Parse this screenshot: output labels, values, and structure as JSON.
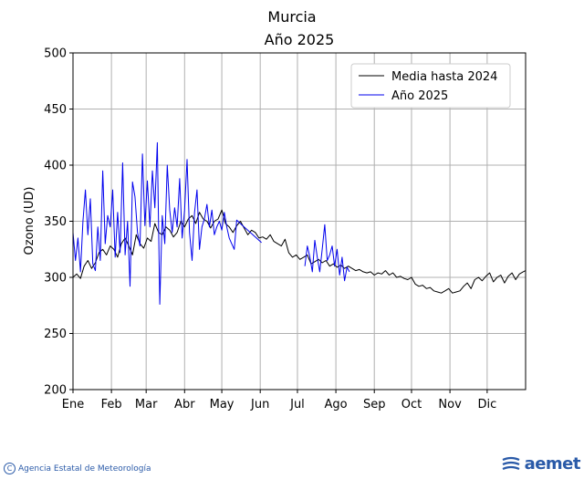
{
  "chart_data": {
    "type": "line",
    "title": "Murcia",
    "subtitle": "Año 2025",
    "ylabel": "Ozono (UD)",
    "xlabel": "",
    "ylim": [
      200,
      500
    ],
    "xlim": [
      1,
      366
    ],
    "yticks": [
      200,
      250,
      300,
      350,
      400,
      450,
      500
    ],
    "xticks": [
      {
        "day": 1,
        "label": "Ene"
      },
      {
        "day": 32,
        "label": "Feb"
      },
      {
        "day": 60,
        "label": "Mar"
      },
      {
        "day": 91,
        "label": "Abr"
      },
      {
        "day": 121,
        "label": "May"
      },
      {
        "day": 152,
        "label": "Jun"
      },
      {
        "day": 182,
        "label": "Jul"
      },
      {
        "day": 213,
        "label": "Ago"
      },
      {
        "day": 244,
        "label": "Sep"
      },
      {
        "day": 274,
        "label": "Oct"
      },
      {
        "day": 305,
        "label": "Nov"
      },
      {
        "day": 335,
        "label": "Dic"
      }
    ],
    "grid": true,
    "legend_position": "top-right",
    "series": [
      {
        "name": "Media hasta 2024",
        "color": "#000000",
        "x": [
          1,
          4,
          7,
          10,
          13,
          16,
          19,
          22,
          25,
          28,
          31,
          34,
          37,
          40,
          43,
          46,
          49,
          52,
          55,
          58,
          61,
          64,
          67,
          70,
          73,
          76,
          79,
          82,
          85,
          88,
          91,
          94,
          97,
          100,
          103,
          106,
          109,
          112,
          115,
          118,
          121,
          124,
          127,
          130,
          133,
          136,
          139,
          142,
          145,
          148,
          151,
          154,
          157,
          160,
          163,
          166,
          169,
          172,
          175,
          178,
          181,
          184,
          187,
          190,
          193,
          196,
          199,
          202,
          205,
          208,
          211,
          214,
          217,
          220,
          223,
          226,
          229,
          232,
          235,
          238,
          241,
          244,
          247,
          250,
          253,
          256,
          259,
          262,
          265,
          268,
          271,
          274,
          277,
          280,
          283,
          286,
          289,
          292,
          295,
          298,
          301,
          304,
          307,
          310,
          313,
          316,
          319,
          322,
          325,
          328,
          331,
          334,
          337,
          340,
          343,
          346,
          349,
          352,
          355,
          358,
          361,
          364,
          366
        ],
        "y": [
          300,
          303,
          299,
          310,
          315,
          308,
          313,
          322,
          325,
          320,
          328,
          325,
          318,
          330,
          335,
          328,
          320,
          338,
          330,
          326,
          335,
          332,
          348,
          340,
          338,
          345,
          342,
          336,
          340,
          350,
          345,
          352,
          355,
          348,
          358,
          352,
          350,
          344,
          350,
          352,
          360,
          348,
          345,
          340,
          346,
          350,
          344,
          338,
          342,
          340,
          335,
          336,
          334,
          338,
          332,
          330,
          328,
          334,
          322,
          318,
          320,
          316,
          318,
          320,
          312,
          314,
          316,
          313,
          315,
          310,
          312,
          309,
          311,
          308,
          310,
          308,
          306,
          307,
          305,
          304,
          305,
          302,
          304,
          303,
          306,
          302,
          304,
          300,
          301,
          299,
          298,
          300,
          294,
          292,
          293,
          290,
          291,
          288,
          287,
          286,
          288,
          290,
          286,
          287,
          288,
          292,
          295,
          290,
          298,
          300,
          297,
          301,
          304,
          296,
          300,
          302,
          295,
          301,
          304,
          298,
          303,
          305,
          306
        ]
      },
      {
        "name": "Año 2025",
        "color": "#0000ee",
        "x": [
          1,
          3,
          5,
          7,
          9,
          11,
          13,
          15,
          17,
          19,
          21,
          23,
          25,
          27,
          29,
          31,
          33,
          35,
          37,
          39,
          41,
          43,
          45,
          47,
          49,
          51,
          53,
          55,
          57,
          59,
          61,
          63,
          65,
          67,
          69,
          71,
          73,
          75,
          77,
          79,
          81,
          83,
          85,
          87,
          89,
          91,
          93,
          95,
          97,
          99,
          101,
          103,
          105,
          107,
          109,
          111,
          113,
          115,
          117,
          119,
          121,
          123,
          125,
          127,
          129,
          131,
          133,
          135,
          137,
          139,
          141,
          143,
          145,
          147,
          149,
          151,
          153,
          188,
          190,
          192,
          194,
          196,
          198,
          200,
          202,
          204,
          206,
          208,
          210,
          212,
          214,
          216,
          218,
          220,
          222,
          224
        ],
        "y": [
          340,
          315,
          335,
          305,
          350,
          378,
          338,
          370,
          312,
          306,
          345,
          315,
          395,
          330,
          355,
          345,
          378,
          318,
          358,
          322,
          402,
          320,
          350,
          292,
          385,
          372,
          340,
          328,
          410,
          346,
          386,
          345,
          395,
          362,
          420,
          276,
          355,
          330,
          400,
          360,
          340,
          362,
          345,
          388,
          335,
          360,
          405,
          340,
          315,
          358,
          378,
          325,
          345,
          352,
          365,
          345,
          360,
          338,
          345,
          350,
          342,
          358,
          345,
          335,
          330,
          325,
          351,
          349,
          347,
          345,
          343,
          341,
          339,
          337,
          335,
          333,
          331,
          310,
          328,
          318,
          305,
          333,
          318,
          305,
          325,
          347,
          315,
          320,
          328,
          310,
          325,
          302,
          318,
          297,
          309,
          305
        ]
      }
    ]
  },
  "footer": {
    "agency": "Agencia Estatal de Meteorología",
    "logo_text": "aemet"
  }
}
